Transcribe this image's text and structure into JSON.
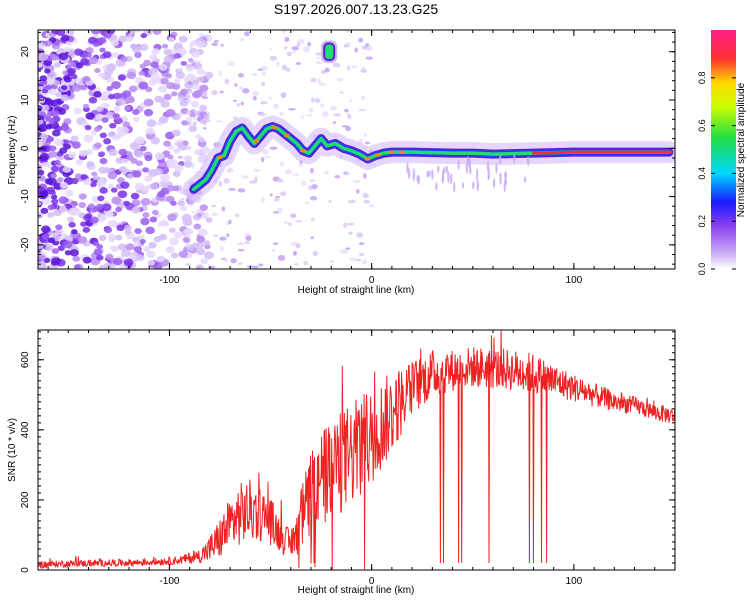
{
  "figure_title": "S197.2026.007.13.23.G25",
  "colors": {
    "snr_line": "#ee2222",
    "axis": "#000000",
    "spectrogram_low": "#8a4cf0",
    "ridge_outer": "#5a1fd6",
    "ridge_inner": "#22dd66"
  },
  "chart_data": [
    {
      "type": "heatmap",
      "name": "spectrogram",
      "title": "S197.2026.007.13.23.G25",
      "xlabel": "Height of straight line (km)",
      "ylabel": "Frequency (Hz)",
      "xlim": [
        -165,
        150
      ],
      "ylim": [
        -25,
        24.5
      ],
      "x_ticks": [
        -100,
        0,
        100
      ],
      "y_ticks": [
        -20,
        -10,
        0,
        10,
        20
      ],
      "x_tick_labels": [
        "-100",
        "0",
        "100"
      ],
      "y_tick_labels": [
        "-20",
        "-10",
        "0",
        "10",
        "20"
      ],
      "colorbar": {
        "label": "Normalized spectral amplitude",
        "range": [
          0.0,
          1.0
        ],
        "ticks": [
          0.0,
          0.2,
          0.4,
          0.6,
          0.8
        ],
        "tick_labels": [
          "0.0",
          "0.2",
          "0.4",
          "0.6",
          "0.8"
        ]
      },
      "ridge": {
        "x": [
          -88,
          -85,
          -82,
          -79,
          -76,
          -73,
          -70,
          -67,
          -64,
          -61,
          -58,
          -55,
          -52,
          -49,
          -46,
          -43,
          -40,
          -37,
          -34,
          -31,
          -28,
          -25,
          -22,
          -18,
          -14,
          -10,
          -6,
          -2,
          2,
          6,
          10,
          20,
          30,
          40,
          50,
          60,
          70,
          80,
          90,
          100,
          110,
          120,
          130,
          140,
          147
        ],
        "y": [
          -8.5,
          -7.5,
          -6.5,
          -4.5,
          -2,
          -1.5,
          1.5,
          3.5,
          4.2,
          2.5,
          1.0,
          2.5,
          4.0,
          4.5,
          4.0,
          3.0,
          2.0,
          1.0,
          -0.5,
          -1.0,
          0.5,
          2.0,
          0.5,
          1.0,
          0.0,
          -0.5,
          -1.2,
          -2.2,
          -1.5,
          -1.0,
          -0.8,
          -0.8,
          -0.9,
          -1.0,
          -1.0,
          -1.2,
          -1.1,
          -1.0,
          -0.9,
          -0.8,
          -0.8,
          -0.8,
          -0.8,
          -0.8,
          -0.8
        ],
        "cluster": {
          "x": -21,
          "y": [
            18.5,
            21.5
          ]
        }
      }
    },
    {
      "type": "line",
      "name": "snr",
      "title": "",
      "xlabel": "Height of straight line (km)",
      "ylabel": "SNR (10 * v/v)",
      "xlim": [
        -165,
        150
      ],
      "ylim": [
        0,
        685
      ],
      "x_ticks": [
        -100,
        0,
        100
      ],
      "y_ticks": [
        0,
        200,
        400,
        600
      ],
      "x_tick_labels": [
        "-100",
        "0",
        "100"
      ],
      "y_tick_labels": [
        "0",
        "200",
        "400",
        "600"
      ],
      "series": [
        {
          "name": "SNR",
          "x": [
            -165,
            -150,
            -130,
            -110,
            -95,
            -85,
            -80,
            -75,
            -70,
            -65,
            -60,
            -55,
            -50,
            -45,
            -40,
            -35,
            -30,
            -20,
            -10,
            0,
            10,
            20,
            30,
            40,
            50,
            60,
            70,
            80,
            90,
            100,
            110,
            120,
            130,
            140,
            150
          ],
          "base": [
            15,
            18,
            20,
            22,
            28,
            40,
            60,
            90,
            130,
            160,
            170,
            160,
            140,
            100,
            70,
            140,
            220,
            280,
            330,
            380,
            450,
            520,
            560,
            570,
            580,
            575,
            570,
            560,
            540,
            520,
            500,
            480,
            470,
            450,
            440
          ],
          "noise": [
            10,
            10,
            10,
            10,
            12,
            20,
            40,
            60,
            80,
            90,
            90,
            80,
            70,
            50,
            40,
            90,
            130,
            150,
            150,
            140,
            120,
            80,
            70,
            60,
            60,
            60,
            60,
            60,
            50,
            40,
            35,
            30,
            25,
            25,
            25
          ],
          "dropouts_x": [
            34,
            35.5,
            43,
            44.5,
            58,
            78,
            80,
            84,
            86.5
          ]
        }
      ]
    }
  ]
}
